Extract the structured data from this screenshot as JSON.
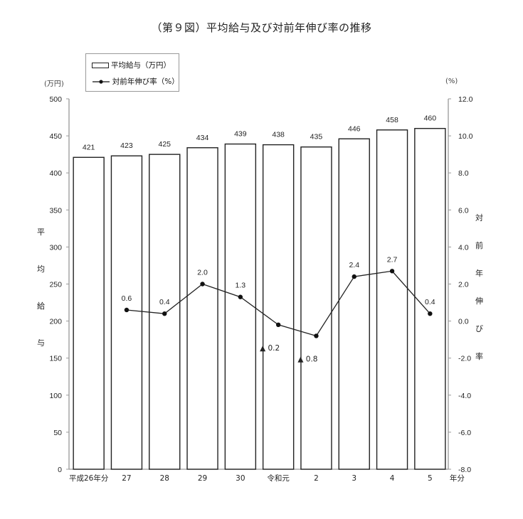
{
  "title": "（第９図）平均給与及び対前年伸び率の推移",
  "legend": {
    "bar_label": "平均給与（万円）",
    "line_label": "対前年伸び率（%）"
  },
  "left_axis": {
    "unit": "(万円)",
    "title_chars": [
      "平",
      "均",
      "給",
      "与"
    ],
    "ticks": [
      "0",
      "50",
      "100",
      "150",
      "200",
      "250",
      "300",
      "350",
      "400",
      "450",
      "500"
    ]
  },
  "right_axis": {
    "unit": "(%)",
    "title_chars": [
      "対",
      "前",
      "年",
      "伸",
      "び",
      "率"
    ],
    "ticks": [
      "-8.0",
      "-6.0",
      "-4.0",
      "-2.0",
      "0.0",
      "2.0",
      "4.0",
      "6.0",
      "8.0",
      "10.0",
      "12.0"
    ]
  },
  "x_axis": {
    "suffix": "年分"
  },
  "chart_data": {
    "type": "bar",
    "title": "（第９図）平均給与及び対前年伸び率の推移",
    "categories": [
      "平成26年分",
      "27",
      "28",
      "29",
      "30",
      "令和元",
      "2",
      "3",
      "4",
      "5"
    ],
    "series": [
      {
        "name": "平均給与（万円）",
        "type": "bar",
        "axis": "left",
        "values": [
          421,
          423,
          425,
          434,
          439,
          438,
          435,
          446,
          458,
          460
        ],
        "labels": [
          "421",
          "423",
          "425",
          "434",
          "439",
          "438",
          "435",
          "446",
          "458",
          "460"
        ]
      },
      {
        "name": "対前年伸び率（%）",
        "type": "line",
        "axis": "right",
        "values": [
          null,
          0.6,
          0.4,
          2.0,
          1.3,
          -0.2,
          -0.8,
          2.4,
          2.7,
          0.4
        ],
        "labels": [
          "",
          "0.6",
          "0.4",
          "2.0",
          "1.3",
          "▲ 0.2",
          "▲ 0.8",
          "2.4",
          "2.7",
          "0.4"
        ]
      }
    ],
    "xlabel": "年分",
    "ylabel": "平均給与",
    "ylabel_right": "対前年伸び率",
    "ylim": [
      0,
      500
    ],
    "ylim_right": [
      -8.0,
      12.0
    ],
    "grid": false,
    "legend_position": "top-left"
  }
}
